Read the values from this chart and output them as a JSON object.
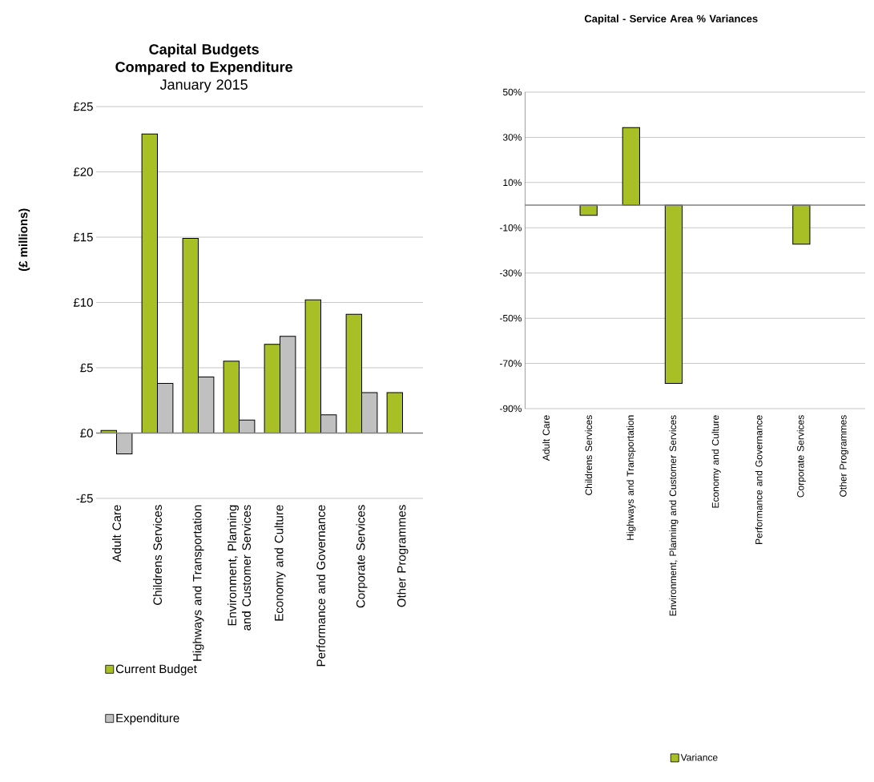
{
  "chart_data": [
    {
      "type": "bar",
      "title": "Capital Budgets Compared to Expenditure",
      "subtitle": "January 2015",
      "ylabel": "(£ millions)",
      "categories": [
        "Adult Care",
        "Childrens Services",
        "Highways and Transportation",
        "Environment, Planning and Customer Services",
        "Economy and Culture",
        "Performance and Governance",
        "Corporate Services",
        "Other Programmes"
      ],
      "series": [
        {
          "name": "Current Budget",
          "color": "#a9bf26",
          "values": [
            0.2,
            22.9,
            14.9,
            5.5,
            6.8,
            10.2,
            9.1,
            3.1
          ]
        },
        {
          "name": "Expenditure",
          "color": "#c0c0c0",
          "values": [
            -1.6,
            3.8,
            4.3,
            1.0,
            7.4,
            1.4,
            3.1,
            null
          ]
        }
      ],
      "ylim": [
        -5,
        25
      ],
      "yticks": [
        {
          "value": -5,
          "label": "-£5"
        },
        {
          "value": 0,
          "label": "£0"
        },
        {
          "value": 5,
          "label": "£5"
        },
        {
          "value": 10,
          "label": "£10"
        },
        {
          "value": 15,
          "label": "£15"
        },
        {
          "value": 20,
          "label": "£20"
        },
        {
          "value": 25,
          "label": "£25"
        }
      ],
      "grid": "y",
      "legend": "bottom left"
    },
    {
      "type": "bar",
      "title": "Capital - Service Area % Variances",
      "categories": [
        "Adult Care",
        "Childrens Services",
        "Highways and Transportation",
        "Environment, Planning and Customer Services",
        "Economy and Culture",
        "Performance and Governance",
        "Corporate Services",
        "Other Programmes"
      ],
      "series": [
        {
          "name": "Variance",
          "color": "#a9bf26",
          "values": [
            null,
            -4.5,
            34.3,
            -78.8,
            null,
            null,
            -17.3,
            null
          ]
        }
      ],
      "ylim": [
        -90,
        50
      ],
      "yticks": [
        {
          "value": -90,
          "label": "-90%"
        },
        {
          "value": -70,
          "label": "-70%"
        },
        {
          "value": -50,
          "label": "-50%"
        },
        {
          "value": -30,
          "label": "-30%"
        },
        {
          "value": -10,
          "label": "-10%"
        },
        {
          "value": 10,
          "label": "10%"
        },
        {
          "value": 30,
          "label": "30%"
        },
        {
          "value": 50,
          "label": "50%"
        }
      ],
      "grid": "y",
      "legend": "bottom"
    }
  ]
}
